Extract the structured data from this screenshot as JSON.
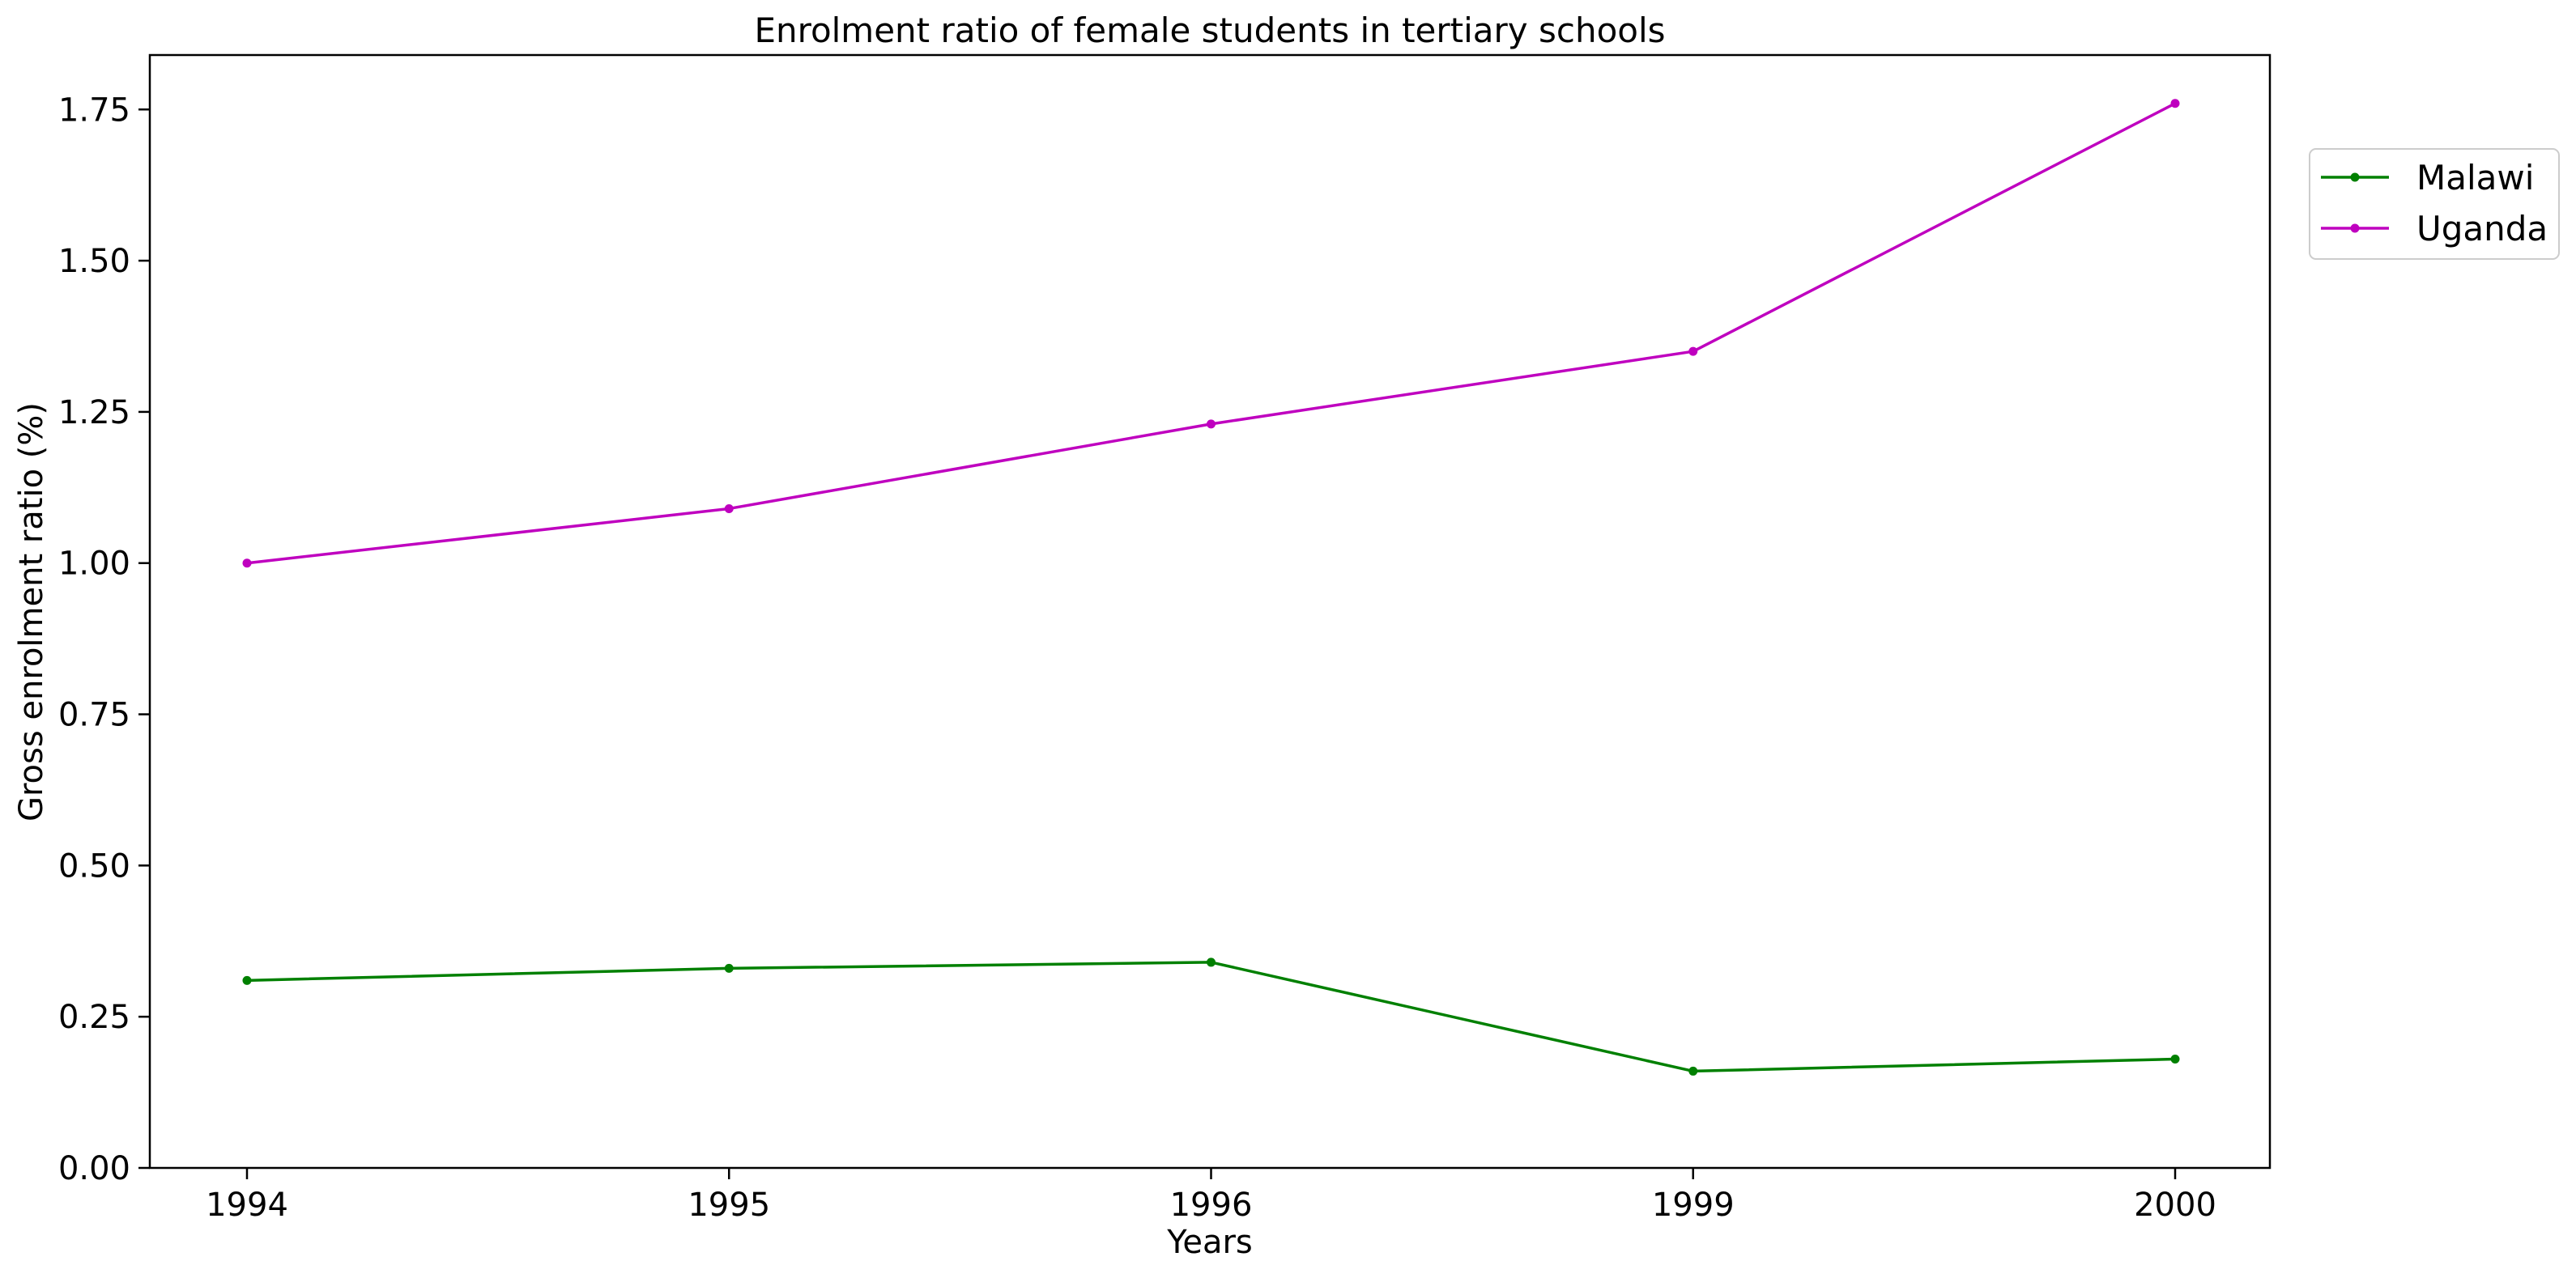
{
  "chart_data": {
    "type": "line",
    "title": "Enrolment ratio of female students in tertiary schools",
    "xlabel": "Years",
    "ylabel": "Gross enrolment ratio (%)",
    "categories": [
      "1994",
      "1995",
      "1996",
      "1999",
      "2000"
    ],
    "ylim": [
      0,
      1.84
    ],
    "yticks": [
      "0.00",
      "0.25",
      "0.50",
      "0.75",
      "1.00",
      "1.25",
      "1.50",
      "1.75"
    ],
    "grid": false,
    "legend_position": "outside-top-right",
    "series": [
      {
        "name": "Malawi",
        "color": "#008000",
        "values": [
          0.31,
          0.33,
          0.34,
          0.16,
          0.18
        ]
      },
      {
        "name": "Uganda",
        "color": "#bf00bf",
        "values": [
          1.0,
          1.09,
          1.23,
          1.35,
          1.76
        ]
      }
    ]
  }
}
